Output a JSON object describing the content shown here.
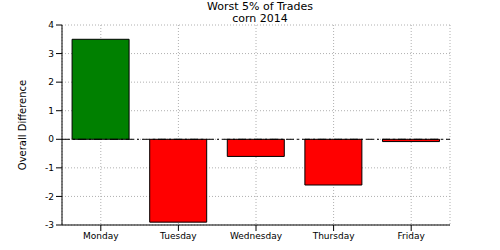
{
  "chart_data": {
    "type": "bar",
    "title": "Worst 5% of Trades",
    "subtitle": "corn 2014",
    "y_label": "Overall Difference",
    "categories": [
      "Monday",
      "Tuesday",
      "Wednesday",
      "Thursday",
      "Friday"
    ],
    "values": [
      3.5,
      -2.9,
      -0.6,
      -1.6,
      -0.08
    ],
    "colors": [
      "#008000",
      "#ff0000",
      "#ff0000",
      "#ff0000",
      "#ff0000"
    ],
    "ylim": [
      -3,
      4
    ],
    "yticks": [
      -3,
      -2,
      -1,
      0,
      1,
      2,
      3,
      4
    ],
    "grid": true
  }
}
